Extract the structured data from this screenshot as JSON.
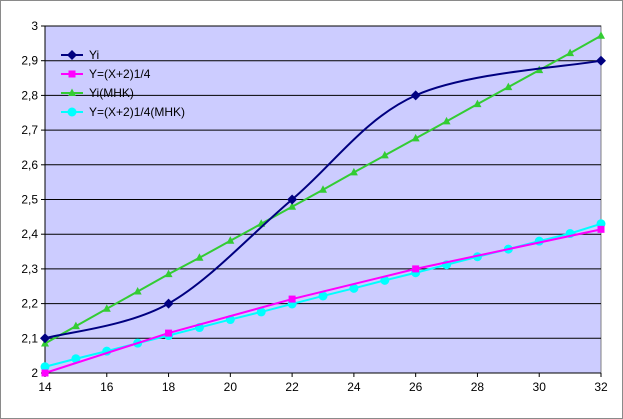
{
  "chart_data": {
    "type": "line",
    "title": "",
    "xlabel": "",
    "ylabel": "",
    "xlim": [
      14,
      32
    ],
    "ylim": [
      2,
      3
    ],
    "x_ticks": [
      "14",
      "16",
      "18",
      "20",
      "22",
      "24",
      "26",
      "28",
      "30",
      "32"
    ],
    "y_ticks": [
      "2",
      "2,1",
      "2,2",
      "2,3",
      "2,4",
      "2,5",
      "2,6",
      "2,7",
      "2,8",
      "2,9",
      "3"
    ],
    "grid": "horizontal",
    "legend_position": "top-left",
    "plot_background": "#ccccff",
    "series": [
      {
        "name": "Yi",
        "color": "#000080",
        "marker": "diamond",
        "smooth": true,
        "x": [
          14,
          18,
          22,
          26,
          32
        ],
        "y": [
          2.1,
          2.2,
          2.5,
          2.8,
          2.9
        ]
      },
      {
        "name": "Y=(X+2)1/4",
        "color": "#ff00ff",
        "marker": "square",
        "smooth": false,
        "x": [
          14,
          18,
          22,
          26,
          32
        ],
        "y": [
          2.0,
          2.115,
          2.213,
          2.3,
          2.414
        ]
      },
      {
        "name": "Yi(MHK)",
        "color": "#33cc33",
        "marker": "triangle",
        "smooth": false,
        "x": [
          14,
          15,
          16,
          17,
          18,
          19,
          20,
          21,
          22,
          23,
          24,
          25,
          26,
          27,
          28,
          29,
          30,
          31,
          32
        ],
        "y": [
          2.085,
          2.135,
          2.185,
          2.235,
          2.285,
          2.332,
          2.381,
          2.43,
          2.479,
          2.528,
          2.578,
          2.627,
          2.676,
          2.725,
          2.775,
          2.824,
          2.873,
          2.922,
          2.972
        ]
      },
      {
        "name": "Y=(X+2)1/4(MHK)",
        "color": "#00ffff",
        "marker": "circle",
        "smooth": false,
        "x": [
          14,
          15,
          16,
          17,
          18,
          19,
          20,
          21,
          22,
          23,
          24,
          25,
          26,
          27,
          28,
          29,
          30,
          31,
          32
        ],
        "y": [
          2.018,
          2.041,
          2.063,
          2.086,
          2.108,
          2.131,
          2.154,
          2.176,
          2.199,
          2.222,
          2.244,
          2.267,
          2.289,
          2.312,
          2.335,
          2.357,
          2.38,
          2.402,
          2.43
        ]
      }
    ]
  }
}
